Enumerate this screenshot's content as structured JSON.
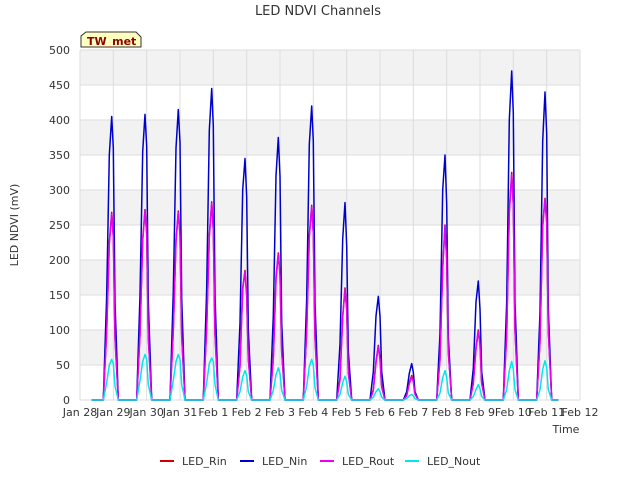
{
  "chart_data": {
    "type": "line",
    "title": "LED NDVI Channels",
    "xlabel": "Time",
    "ylabel": "LED NDVI (mV)",
    "badge": "TW_met",
    "ylim": [
      0,
      500
    ],
    "yticks": [
      0,
      50,
      100,
      150,
      200,
      250,
      300,
      350,
      400,
      450,
      500
    ],
    "xlim": [
      0,
      15
    ],
    "xticks": [
      {
        "pos": 0,
        "label": "Jan 28"
      },
      {
        "pos": 1,
        "label": "Jan 29"
      },
      {
        "pos": 2,
        "label": "Jan 30"
      },
      {
        "pos": 3,
        "label": "Jan 31"
      },
      {
        "pos": 4,
        "label": "Feb 1"
      },
      {
        "pos": 5,
        "label": "Feb 2"
      },
      {
        "pos": 6,
        "label": "Feb 3"
      },
      {
        "pos": 7,
        "label": "Feb 4"
      },
      {
        "pos": 8,
        "label": "Feb 5"
      },
      {
        "pos": 9,
        "label": "Feb 6"
      },
      {
        "pos": 10,
        "label": "Feb 7"
      },
      {
        "pos": 11,
        "label": "Feb 8"
      },
      {
        "pos": 12,
        "label": "Feb 9"
      },
      {
        "pos": 13,
        "label": "Feb 10"
      },
      {
        "pos": 14,
        "label": "Feb 11"
      },
      {
        "pos": 15,
        "label": "Feb 12"
      }
    ],
    "grid": true,
    "legend_position": "bottom",
    "series": [
      {
        "name": "LED_Rin",
        "color": "#cc0000",
        "x": [
          0.35,
          0.7,
          0.8,
          0.88,
          0.95,
          1.0,
          1.05,
          1.15,
          1.25,
          1.7,
          1.8,
          1.88,
          1.95,
          2.0,
          2.05,
          2.15,
          2.25,
          2.7,
          2.8,
          2.88,
          2.95,
          3.0,
          3.05,
          3.15,
          3.25,
          3.7,
          3.8,
          3.88,
          3.95,
          4.0,
          4.05,
          4.15,
          4.25,
          4.7,
          4.8,
          4.88,
          4.95,
          5.0,
          5.05,
          5.15,
          5.25,
          5.7,
          5.8,
          5.88,
          5.95,
          6.0,
          6.05,
          6.15,
          6.25,
          6.7,
          6.8,
          6.88,
          6.95,
          7.0,
          7.05,
          7.15,
          7.25,
          7.7,
          7.8,
          7.88,
          7.95,
          8.0,
          8.05,
          8.15,
          8.25,
          8.7,
          8.8,
          8.88,
          8.95,
          9.0,
          9.05,
          9.15,
          9.25,
          9.7,
          9.8,
          9.88,
          9.95,
          10.0,
          10.05,
          10.15,
          10.25,
          10.7,
          10.8,
          10.88,
          10.95,
          11.0,
          11.05,
          11.15,
          11.25,
          11.7,
          11.8,
          11.88,
          11.95,
          12.0,
          12.05,
          12.15,
          12.25,
          12.7,
          12.8,
          12.88,
          12.95,
          13.0,
          13.05,
          13.15,
          13.25,
          13.7,
          13.8,
          13.88,
          13.95,
          14.0,
          14.05,
          14.15,
          14.25,
          14.35
        ],
        "y": [
          0,
          0,
          100,
          225,
          268,
          235,
          90,
          0,
          0,
          0,
          95,
          230,
          272,
          238,
          90,
          0,
          0,
          0,
          100,
          228,
          270,
          236,
          92,
          0,
          0,
          0,
          105,
          235,
          283,
          245,
          95,
          0,
          0,
          0,
          50,
          160,
          185,
          150,
          60,
          0,
          0,
          0,
          60,
          175,
          210,
          180,
          70,
          0,
          0,
          0,
          100,
          235,
          278,
          240,
          90,
          0,
          0,
          0,
          30,
          120,
          160,
          130,
          40,
          0,
          0,
          0,
          15,
          55,
          78,
          60,
          20,
          0,
          0,
          0,
          8,
          25,
          35,
          28,
          10,
          0,
          0,
          0,
          60,
          190,
          250,
          200,
          70,
          0,
          0,
          0,
          25,
          75,
          100,
          80,
          25,
          0,
          0,
          0,
          95,
          270,
          325,
          280,
          100,
          0,
          0,
          0,
          85,
          250,
          288,
          255,
          100,
          0,
          0,
          0
        ]
      },
      {
        "name": "LED_Nin",
        "color": "#0000cc",
        "x": [
          0.35,
          0.7,
          0.8,
          0.88,
          0.95,
          1.0,
          1.05,
          1.15,
          1.25,
          1.7,
          1.8,
          1.88,
          1.95,
          2.0,
          2.05,
          2.15,
          2.25,
          2.7,
          2.8,
          2.88,
          2.95,
          3.0,
          3.05,
          3.15,
          3.25,
          3.7,
          3.8,
          3.88,
          3.95,
          4.0,
          4.05,
          4.15,
          4.25,
          4.7,
          4.8,
          4.88,
          4.95,
          5.0,
          5.05,
          5.15,
          5.25,
          5.7,
          5.8,
          5.88,
          5.95,
          6.0,
          6.05,
          6.15,
          6.25,
          6.7,
          6.8,
          6.88,
          6.95,
          7.0,
          7.05,
          7.15,
          7.25,
          7.7,
          7.8,
          7.88,
          7.95,
          8.0,
          8.05,
          8.15,
          8.25,
          8.7,
          8.8,
          8.88,
          8.95,
          9.0,
          9.05,
          9.15,
          9.25,
          9.7,
          9.8,
          9.88,
          9.95,
          10.0,
          10.05,
          10.15,
          10.25,
          10.7,
          10.8,
          10.88,
          10.95,
          11.0,
          11.05,
          11.15,
          11.25,
          11.7,
          11.8,
          11.88,
          11.95,
          12.0,
          12.05,
          12.15,
          12.25,
          12.7,
          12.8,
          12.88,
          12.95,
          13.0,
          13.05,
          13.15,
          13.25,
          13.7,
          13.8,
          13.88,
          13.95,
          14.0,
          14.05,
          14.15,
          14.25,
          14.35
        ],
        "y": [
          0,
          0,
          150,
          350,
          405,
          360,
          140,
          0,
          0,
          0,
          150,
          355,
          408,
          362,
          140,
          0,
          0,
          0,
          155,
          360,
          415,
          368,
          145,
          0,
          0,
          0,
          160,
          385,
          445,
          392,
          150,
          0,
          0,
          0,
          110,
          300,
          345,
          290,
          100,
          0,
          0,
          0,
          120,
          320,
          375,
          320,
          110,
          0,
          0,
          0,
          145,
          365,
          420,
          370,
          140,
          0,
          0,
          0,
          80,
          230,
          282,
          220,
          70,
          0,
          0,
          0,
          40,
          120,
          148,
          120,
          40,
          0,
          0,
          0,
          12,
          38,
          52,
          40,
          12,
          0,
          0,
          0,
          95,
          300,
          350,
          280,
          90,
          0,
          0,
          0,
          45,
          140,
          170,
          130,
          40,
          0,
          0,
          0,
          140,
          400,
          470,
          410,
          140,
          0,
          0,
          0,
          125,
          370,
          440,
          380,
          130,
          0,
          0,
          0
        ]
      },
      {
        "name": "LED_Rout",
        "color": "#ee00ee",
        "x": [
          0.35,
          0.7,
          0.8,
          0.88,
          0.95,
          1.0,
          1.05,
          1.15,
          1.25,
          1.7,
          1.8,
          1.88,
          1.95,
          2.0,
          2.05,
          2.15,
          2.25,
          2.7,
          2.8,
          2.88,
          2.95,
          3.0,
          3.05,
          3.15,
          3.25,
          3.7,
          3.8,
          3.88,
          3.95,
          4.0,
          4.05,
          4.15,
          4.25,
          4.7,
          4.8,
          4.88,
          4.95,
          5.0,
          5.05,
          5.15,
          5.25,
          5.7,
          5.8,
          5.88,
          5.95,
          6.0,
          6.05,
          6.15,
          6.25,
          6.7,
          6.8,
          6.88,
          6.95,
          7.0,
          7.05,
          7.15,
          7.25,
          7.7,
          7.8,
          7.88,
          7.95,
          8.0,
          8.05,
          8.15,
          8.25,
          8.7,
          8.8,
          8.88,
          8.95,
          9.0,
          9.05,
          9.15,
          9.25,
          9.7,
          9.8,
          9.88,
          9.95,
          10.0,
          10.05,
          10.15,
          10.25,
          10.7,
          10.8,
          10.88,
          10.95,
          11.0,
          11.05,
          11.15,
          11.25,
          11.7,
          11.8,
          11.88,
          11.95,
          12.0,
          12.05,
          12.15,
          12.25,
          12.7,
          12.8,
          12.88,
          12.95,
          13.0,
          13.05,
          13.15,
          13.25,
          13.7,
          13.8,
          13.88,
          13.95,
          14.0,
          14.05,
          14.15,
          14.25,
          14.35
        ],
        "y": [
          0,
          0,
          98,
          222,
          266,
          232,
          88,
          0,
          0,
          0,
          93,
          228,
          270,
          236,
          88,
          0,
          0,
          0,
          98,
          226,
          268,
          234,
          90,
          0,
          0,
          0,
          103,
          232,
          281,
          242,
          93,
          0,
          0,
          0,
          48,
          158,
          183,
          148,
          58,
          0,
          0,
          0,
          58,
          172,
          208,
          178,
          68,
          0,
          0,
          0,
          98,
          232,
          276,
          238,
          88,
          0,
          0,
          0,
          28,
          118,
          158,
          128,
          38,
          0,
          0,
          0,
          13,
          53,
          76,
          58,
          18,
          0,
          0,
          0,
          6,
          23,
          33,
          26,
          8,
          0,
          0,
          0,
          58,
          188,
          248,
          198,
          68,
          0,
          0,
          0,
          23,
          73,
          98,
          78,
          23,
          0,
          0,
          0,
          93,
          268,
          322,
          278,
          98,
          0,
          0,
          0,
          83,
          248,
          286,
          252,
          98,
          0,
          0,
          0
        ]
      },
      {
        "name": "LED_Nout",
        "color": "#00e5ee",
        "x": [
          0.35,
          0.7,
          0.8,
          0.88,
          0.95,
          1.0,
          1.05,
          1.15,
          1.25,
          1.7,
          1.8,
          1.88,
          1.95,
          2.0,
          2.05,
          2.15,
          2.25,
          2.7,
          2.8,
          2.88,
          2.95,
          3.0,
          3.05,
          3.15,
          3.25,
          3.7,
          3.8,
          3.88,
          3.95,
          4.0,
          4.05,
          4.15,
          4.25,
          4.7,
          4.8,
          4.88,
          4.95,
          5.0,
          5.05,
          5.15,
          5.25,
          5.7,
          5.8,
          5.88,
          5.95,
          6.0,
          6.05,
          6.15,
          6.25,
          6.7,
          6.8,
          6.88,
          6.95,
          7.0,
          7.05,
          7.15,
          7.25,
          7.7,
          7.8,
          7.88,
          7.95,
          8.0,
          8.05,
          8.15,
          8.25,
          8.7,
          8.8,
          8.88,
          8.95,
          9.0,
          9.05,
          9.15,
          9.25,
          9.7,
          9.8,
          9.88,
          9.95,
          10.0,
          10.05,
          10.15,
          10.25,
          10.7,
          10.8,
          10.88,
          10.95,
          11.0,
          11.05,
          11.15,
          11.25,
          11.7,
          11.8,
          11.88,
          11.95,
          12.0,
          12.05,
          12.15,
          12.25,
          12.7,
          12.8,
          12.88,
          12.95,
          13.0,
          13.05,
          13.15,
          13.25,
          13.7,
          13.8,
          13.88,
          13.95,
          14.0,
          14.05,
          14.15,
          14.25,
          14.35
        ],
        "y": [
          0,
          0,
          25,
          50,
          58,
          52,
          20,
          0,
          0,
          0,
          28,
          55,
          65,
          58,
          22,
          0,
          0,
          0,
          28,
          55,
          65,
          58,
          22,
          0,
          0,
          0,
          25,
          52,
          60,
          55,
          22,
          0,
          0,
          0,
          12,
          33,
          42,
          35,
          12,
          0,
          0,
          0,
          14,
          36,
          46,
          38,
          14,
          0,
          0,
          0,
          20,
          48,
          58,
          50,
          18,
          0,
          0,
          0,
          8,
          25,
          34,
          26,
          8,
          0,
          0,
          0,
          4,
          12,
          16,
          12,
          4,
          0,
          0,
          0,
          2,
          6,
          8,
          6,
          2,
          0,
          0,
          0,
          10,
          32,
          42,
          32,
          10,
          0,
          0,
          0,
          5,
          15,
          22,
          16,
          5,
          0,
          0,
          0,
          15,
          42,
          55,
          44,
          15,
          0,
          0,
          0,
          15,
          44,
          56,
          46,
          15,
          0,
          0,
          0
        ]
      }
    ]
  }
}
